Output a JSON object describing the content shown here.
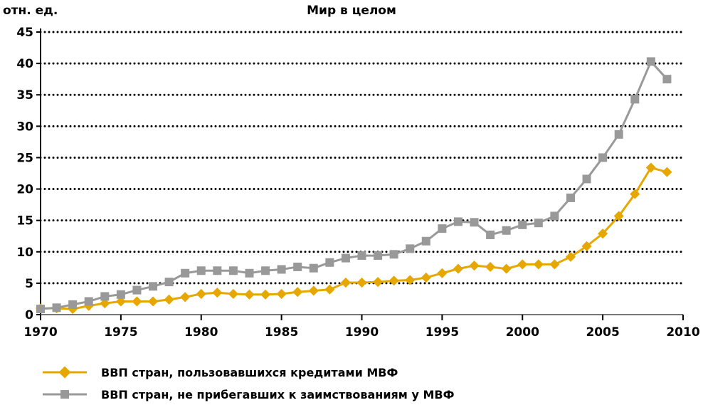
{
  "chart_data": {
    "type": "line",
    "title": "Мир в целом",
    "ylabel": "отн. ед.",
    "xlabel": "",
    "xlim": [
      1970,
      2010
    ],
    "ylim": [
      0,
      45
    ],
    "x_ticks": [
      "1970",
      "1975",
      "1980",
      "1985",
      "1990",
      "1995",
      "2000",
      "2005",
      "2010"
    ],
    "y_ticks": [
      "0",
      "5",
      "10",
      "15",
      "20",
      "25",
      "30",
      "35",
      "40",
      "45"
    ],
    "grid": "horizontal dotted",
    "legend_position": "bottom",
    "x": [
      1970,
      1971,
      1972,
      1973,
      1974,
      1975,
      1976,
      1977,
      1978,
      1979,
      1980,
      1981,
      1982,
      1983,
      1984,
      1985,
      1986,
      1987,
      1988,
      1989,
      1990,
      1991,
      1992,
      1993,
      1994,
      1995,
      1996,
      1997,
      1998,
      1999,
      2000,
      2001,
      2002,
      2003,
      2004,
      2005,
      2006,
      2007,
      2008,
      2009
    ],
    "series": [
      {
        "name": "ВВП стран, пользовавшихся кредитами МВФ",
        "color": "#E6A800",
        "marker": "diamond",
        "values": [
          1.0,
          1.0,
          0.9,
          1.4,
          1.8,
          2.1,
          2.1,
          2.1,
          2.4,
          2.8,
          3.3,
          3.5,
          3.3,
          3.2,
          3.2,
          3.3,
          3.6,
          3.8,
          4.0,
          5.1,
          5.1,
          5.2,
          5.4,
          5.5,
          5.9,
          6.6,
          7.3,
          7.8,
          7.6,
          7.3,
          8.0,
          8.0,
          8.0,
          9.2,
          10.9,
          12.9,
          15.7,
          19.2,
          23.4,
          22.7
        ]
      },
      {
        "name": "ВВП стран, не прибегавших к заимствованиям у МВФ",
        "color": "#999999",
        "marker": "square",
        "values": [
          0.9,
          1.1,
          1.6,
          2.1,
          2.9,
          3.2,
          3.9,
          4.5,
          5.2,
          6.6,
          7.0,
          7.0,
          7.0,
          6.6,
          7.0,
          7.2,
          7.6,
          7.4,
          8.3,
          9.0,
          9.4,
          9.4,
          9.6,
          10.5,
          11.7,
          13.7,
          14.8,
          14.7,
          12.7,
          13.4,
          14.3,
          14.6,
          15.7,
          18.6,
          21.6,
          25.0,
          28.7,
          34.3,
          40.3,
          37.5
        ]
      }
    ]
  }
}
